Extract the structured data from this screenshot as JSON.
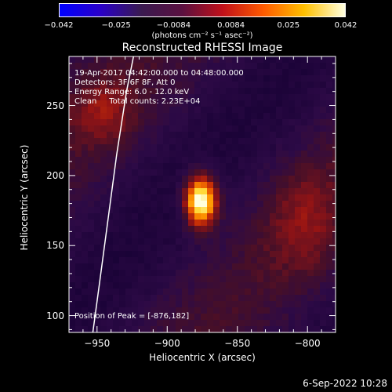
{
  "chart_data": {
    "type": "heatmap",
    "title": "Reconstructed RHESSI Image",
    "xlabel": "Heliocentric X (arcsec)",
    "ylabel": "Heliocentric Y (arcsec)",
    "xlim": [
      -970,
      -780
    ],
    "ylim": [
      88,
      285
    ],
    "x_ticks": [
      -950,
      -900,
      -850,
      -800
    ],
    "x_tick_labels": [
      "−950",
      "−900",
      "−850",
      "−800"
    ],
    "y_ticks": [
      100,
      150,
      200,
      250
    ],
    "y_tick_labels": [
      "100",
      "150",
      "200",
      "250"
    ],
    "peak": {
      "x": -876,
      "y": 182
    },
    "colorbar": {
      "min": -0.042,
      "max": 0.042,
      "tick_labels": [
        "−0.042",
        "−0.025",
        "−0.0084",
        "0.0084",
        "0.025",
        "0.042"
      ],
      "units_label": "(photons cm⁻² s⁻¹ asec⁻²)",
      "colors": [
        "#0000ff",
        "#2a00c8",
        "#3a1a50",
        "#5a1040",
        "#c0101a",
        "#ff5a00",
        "#ffc000",
        "#ffffe0"
      ]
    },
    "limb": [
      {
        "x": -953,
        "y": 88
      },
      {
        "x": -948,
        "y": 125
      },
      {
        "x": -942,
        "y": 170
      },
      {
        "x": -936,
        "y": 215
      },
      {
        "x": -929,
        "y": 260
      },
      {
        "x": -924,
        "y": 285
      }
    ]
  },
  "info": {
    "line1": "19-Apr-2017 04:42:00.000 to 04:48:00.000",
    "line2": "Detectors: 3F 6F 8F, Att 0",
    "line3": "Energy Range: 6.0 - 12.0 keV",
    "line4": "Clean     Total counts: 2.23E+04"
  },
  "peak_label": "Position of Peak = [-876,182]",
  "timestamp": "6-Sep-2022 10:28"
}
